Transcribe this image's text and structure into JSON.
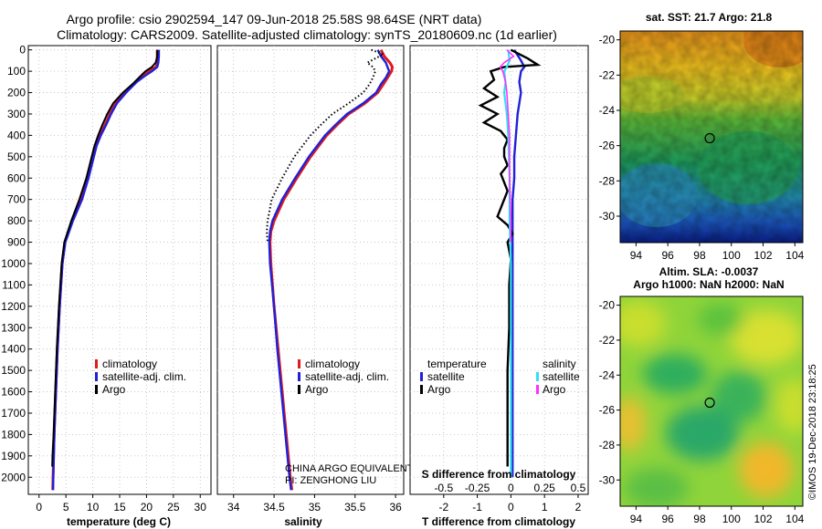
{
  "header": {
    "line1": "Argo profile: csio 2902594_147 09-Jun-2018 25.58S 98.64SE (NRT data)",
    "line2": "Climatology: CARS2009. Satellite-adjusted climatology: synTS_20180609.nc (1d earlier)"
  },
  "colors": {
    "climatology": "#e11b1b",
    "satellite": "#2020d8",
    "argo": "#000000",
    "sat_salinity": "#30e0f0",
    "argo_salinity": "#ff30ff"
  },
  "depth_ticks": [
    "0",
    "100",
    "200",
    "300",
    "400",
    "500",
    "600",
    "700",
    "800",
    "900",
    "1000",
    "1100",
    "1200",
    "1300",
    "1400",
    "1500",
    "1600",
    "1700",
    "1800",
    "1900",
    "2000"
  ],
  "chart_data": [
    {
      "type": "line",
      "name": "temperature",
      "xlabel": "temperature (deg C)",
      "xlim": [
        -2,
        32
      ],
      "ylim": [
        2080,
        -20
      ],
      "xticks": [
        "0",
        "5",
        "10",
        "15",
        "20",
        "25",
        "30"
      ],
      "xtick_values": [
        0,
        5,
        10,
        15,
        20,
        25,
        30
      ],
      "legend": [
        "climatology",
        "satellite-adj. clim.",
        "Argo"
      ],
      "series": [
        {
          "name": "climatology",
          "depth": [
            0,
            30,
            60,
            80,
            100,
            120,
            150,
            200,
            250,
            300,
            350,
            400,
            450,
            500,
            600,
            700,
            800,
            900,
            1000,
            1200,
            1400,
            1600,
            1800,
            2000,
            2060
          ],
          "values": [
            22,
            22,
            22,
            21.8,
            20.5,
            19.5,
            18,
            16,
            14.3,
            13.2,
            12.3,
            11.3,
            10.5,
            10,
            9,
            7.8,
            6.2,
            4.8,
            4.3,
            3.8,
            3.4,
            3.1,
            2.8,
            2.6,
            2.55
          ]
        },
        {
          "name": "satellite-adj. clim.",
          "depth": [
            0,
            30,
            60,
            80,
            100,
            120,
            150,
            200,
            250,
            300,
            350,
            400,
            450,
            500,
            600,
            700,
            800,
            900,
            1000,
            1200,
            1400,
            1600,
            1800,
            2000,
            2060
          ],
          "values": [
            22.3,
            22.3,
            22.2,
            22,
            21,
            19.8,
            18.2,
            16.2,
            14.5,
            13.4,
            12.5,
            11.5,
            10.7,
            10.2,
            9.2,
            8,
            6.3,
            4.9,
            4.35,
            3.85,
            3.45,
            3.15,
            2.85,
            2.65,
            2.6
          ]
        },
        {
          "name": "Argo",
          "depth": [
            0,
            30,
            60,
            80,
            100,
            130,
            160,
            200,
            250,
            300,
            350,
            400,
            450,
            500,
            600,
            700,
            800,
            900,
            1000,
            1200,
            1400,
            1600,
            1800,
            1900,
            1950
          ],
          "values": [
            22,
            22,
            21.7,
            21,
            19.8,
            18.6,
            17.4,
            15.6,
            13.8,
            12.7,
            11.8,
            11,
            10.3,
            9.8,
            8.8,
            7.5,
            6,
            4.7,
            4.2,
            3.7,
            3.3,
            3,
            2.7,
            2.5,
            2.45
          ]
        }
      ]
    },
    {
      "type": "line",
      "name": "salinity",
      "xlabel": "salinity",
      "xlim": [
        33.8,
        36.1
      ],
      "ylim": [
        2080,
        -20
      ],
      "xticks": [
        "34",
        "34.5",
        "35",
        "35.5",
        "36"
      ],
      "xtick_values": [
        34,
        34.5,
        35,
        35.5,
        36
      ],
      "legend": [
        "climatology",
        "satellite-adj. clim.",
        "Argo"
      ],
      "annotation": [
        "CHINA ARGO EQUIVALENT",
        "PI: ZENGHONG LIU"
      ],
      "series": [
        {
          "name": "climatology",
          "depth": [
            0,
            30,
            60,
            80,
            100,
            130,
            160,
            200,
            250,
            300,
            350,
            400,
            500,
            600,
            700,
            800,
            850,
            900,
            1000,
            1200,
            1400,
            1600,
            1800,
            2000,
            2060
          ],
          "values": [
            35.82,
            35.86,
            35.93,
            35.96,
            35.95,
            35.9,
            35.85,
            35.78,
            35.62,
            35.42,
            35.28,
            35.15,
            34.95,
            34.78,
            34.62,
            34.5,
            34.46,
            34.45,
            34.46,
            34.5,
            34.55,
            34.6,
            34.65,
            34.7,
            34.72
          ]
        },
        {
          "name": "satellite-adj. clim.",
          "depth": [
            0,
            30,
            60,
            80,
            100,
            130,
            160,
            200,
            250,
            300,
            350,
            400,
            500,
            600,
            700,
            800,
            850,
            900,
            1000,
            1200,
            1400,
            1600,
            1800,
            2000,
            2060
          ],
          "values": [
            35.78,
            35.82,
            35.88,
            35.9,
            35.92,
            35.88,
            35.82,
            35.76,
            35.6,
            35.4,
            35.26,
            35.13,
            34.93,
            34.76,
            34.6,
            34.48,
            34.45,
            34.44,
            34.45,
            34.5,
            34.54,
            34.59,
            34.64,
            34.69,
            34.71
          ]
        },
        {
          "name": "Argo",
          "depth": [
            0,
            20,
            40,
            60,
            80,
            100,
            130,
            160,
            200,
            250,
            300,
            350,
            400,
            500,
            600,
            700,
            800,
            850,
            900
          ],
          "values": [
            35.7,
            35.85,
            35.75,
            35.65,
            35.72,
            35.75,
            35.72,
            35.68,
            35.6,
            35.42,
            35.22,
            35.08,
            34.95,
            34.75,
            34.6,
            34.47,
            34.42,
            34.41,
            34.42
          ]
        }
      ]
    },
    {
      "type": "line",
      "name": "difference",
      "xlabel": "T difference from climatology",
      "xlabel2": "S difference from climatology",
      "xlim": [
        -3.0,
        2.3
      ],
      "ylim": [
        2080,
        -20
      ],
      "xticks": [
        "-2",
        "-1",
        "0",
        "1",
        "2"
      ],
      "xtick_values": [
        -2,
        -1,
        0,
        1,
        2
      ],
      "xticks2": [
        "-0.5",
        "-0.25",
        "0",
        "0.25",
        "0.5"
      ],
      "xtick2_values": [
        -0.5,
        -0.25,
        0,
        0.25,
        0.5
      ],
      "legend_temperature_title": "temperature",
      "legend_salinity_title": "salinity",
      "legend_temperature": [
        "satellite",
        "Argo"
      ],
      "legend_salinity": [
        "satellite",
        "Argo"
      ],
      "series": [
        {
          "name": "temperature satellite",
          "depth": [
            0,
            50,
            80,
            100,
            150,
            200,
            300,
            400,
            500,
            600,
            700,
            800,
            1000,
            1200,
            1500,
            2000
          ],
          "values": [
            0.1,
            0.3,
            0.4,
            0.3,
            0.25,
            0.3,
            0.2,
            0.15,
            0.1,
            0.1,
            0.05,
            0.05,
            0.05,
            0.05,
            0.05,
            0.05
          ]
        },
        {
          "name": "temperature Argo",
          "depth": [
            0,
            40,
            70,
            80,
            100,
            140,
            180,
            220,
            260,
            300,
            340,
            380,
            420,
            460,
            500,
            540,
            580,
            620,
            660,
            700,
            740,
            780,
            820,
            860,
            900,
            940,
            980,
            1100,
            1300,
            1500,
            1700,
            1900,
            1950
          ],
          "values": [
            0,
            0.5,
            0.8,
            -0.2,
            -0.6,
            -0.5,
            -0.8,
            -0.4,
            -0.9,
            -0.4,
            -0.8,
            -0.3,
            -0.1,
            -0.2,
            -0.2,
            -0.1,
            -0.3,
            -0.2,
            -0.1,
            -0.2,
            -0.3,
            -0.4,
            -0.1,
            0.05,
            -0.1,
            -0.05,
            0.0,
            -0.05,
            -0.05,
            -0.1,
            -0.1,
            -0.1,
            -0.1
          ]
        },
        {
          "name": "salinity satellite",
          "depth": [
            0,
            50,
            80,
            100,
            150,
            200,
            300,
            400,
            600,
            800,
            1000,
            1500,
            2000
          ],
          "values": [
            -0.02,
            -0.01,
            -0.03,
            -0.05,
            -0.04,
            -0.05,
            -0.03,
            -0.02,
            -0.01,
            -0.01,
            0,
            0,
            0
          ]
        },
        {
          "name": "salinity Argo",
          "depth": [
            0,
            30,
            60,
            80,
            100,
            150,
            200,
            300,
            400,
            600,
            800,
            900
          ],
          "values": [
            -0.03,
            0.02,
            -0.05,
            -0.08,
            -0.06,
            -0.04,
            -0.03,
            -0.02,
            -0.01,
            -0.01,
            0,
            0
          ]
        }
      ]
    },
    {
      "type": "heatmap",
      "name": "sst_map",
      "title": "sat. SST: 21.7 Argo: 21.8",
      "xticks": [
        "94",
        "96",
        "98",
        "100",
        "102",
        "104"
      ],
      "xtick_values": [
        94,
        96,
        98,
        100,
        102,
        104
      ],
      "yticks": [
        "-20",
        "-22",
        "-24",
        "-26",
        "-28",
        "-30"
      ],
      "ytick_values": [
        -20,
        -22,
        -24,
        -26,
        -28,
        -30
      ],
      "xlim": [
        93,
        104.5
      ],
      "ylim": [
        -31.5,
        -19.5
      ],
      "marker": [
        98.64,
        -25.58
      ]
    },
    {
      "type": "heatmap",
      "name": "sla_map",
      "title": "Altim. SLA: -0.0037",
      "subtitle": "Argo h1000: NaN h2000: NaN",
      "xticks": [
        "94",
        "96",
        "98",
        "100",
        "102",
        "104"
      ],
      "xtick_values": [
        94,
        96,
        98,
        100,
        102,
        104
      ],
      "yticks": [
        "-20",
        "-22",
        "-24",
        "-26",
        "-28",
        "-30"
      ],
      "ytick_values": [
        -20,
        -22,
        -24,
        -26,
        -28,
        -30
      ],
      "xlim": [
        93,
        104.5
      ],
      "ylim": [
        -31.5,
        -19.5
      ],
      "marker": [
        98.64,
        -25.58
      ]
    }
  ],
  "footer": {
    "credit": "©IMOS 19-Dec-2018 23:18:25"
  }
}
